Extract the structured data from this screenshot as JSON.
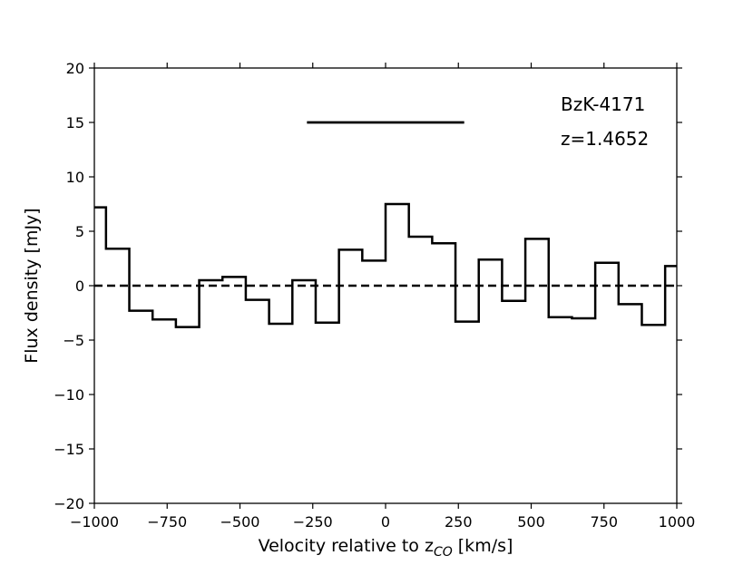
{
  "chart_data": {
    "type": "line",
    "step": "post",
    "xlim": [
      -1000,
      1000
    ],
    "ylim": [
      -20,
      20
    ],
    "xticks": [
      -1000,
      -750,
      -500,
      -250,
      0,
      250,
      500,
      750,
      1000
    ],
    "xtick_labels": [
      "−1000",
      "−750",
      "−500",
      "−250",
      "0",
      "250",
      "500",
      "750",
      "1000"
    ],
    "yticks": [
      -20,
      -15,
      -10,
      -5,
      0,
      5,
      10,
      15,
      20
    ],
    "ytick_labels": [
      "−20",
      "−15",
      "−10",
      "−5",
      "0",
      "5",
      "10",
      "15",
      "20"
    ],
    "xlabel_main": "Velocity relative to z",
    "xlabel_sub": "CO",
    "xlabel_tail": " [km/s]",
    "ylabel": "Flux density [mJy]",
    "annotations": [
      "BzK-4171",
      "z=1.4652"
    ],
    "grid": false,
    "series": [
      {
        "style": "steps",
        "x": [
          -1000,
          -960,
          -880,
          -800,
          -720,
          -640,
          -560,
          -480,
          -400,
          -320,
          -240,
          -160,
          -80,
          0,
          80,
          160,
          240,
          320,
          400,
          480,
          560,
          640,
          720,
          800,
          880,
          960,
          1000
        ],
        "y": [
          7.2,
          3.4,
          -2.3,
          -3.1,
          -3.8,
          0.5,
          0.8,
          -1.3,
          -3.5,
          0.5,
          -3.4,
          3.3,
          2.3,
          7.5,
          4.5,
          3.9,
          -3.3,
          2.4,
          -1.4,
          4.3,
          -2.9,
          -3.0,
          2.1,
          -1.7,
          -3.6,
          1.8,
          1.8
        ]
      }
    ],
    "baseline": {
      "y": 0,
      "style": "dashed"
    },
    "line_width_range": {
      "x0": -270,
      "x1": 270,
      "y": 15
    }
  }
}
